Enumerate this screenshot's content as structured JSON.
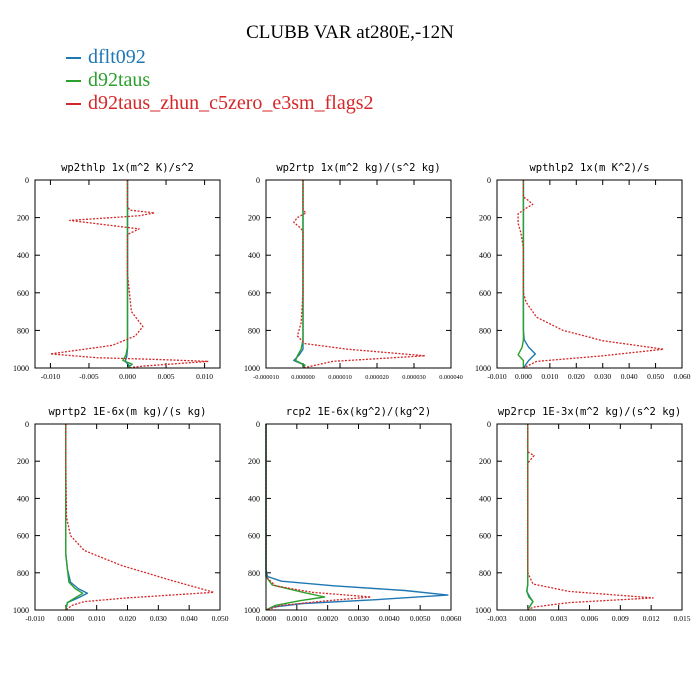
{
  "title": "CLUBB VAR at280E,-12N",
  "legend": [
    {
      "name": "dflt092",
      "color": "#1f77b4"
    },
    {
      "name": "d92taus",
      "color": "#2ca02c"
    },
    {
      "name": "d92taus_zhun_c5zero_e3sm_flags2",
      "color": "#d62728"
    }
  ],
  "chart_data": [
    {
      "type": "line",
      "title": "wp2thlp  1x(m^2 K)/s^2",
      "xlim": [
        -0.012,
        0.012
      ],
      "ylim": [
        1000,
        0
      ],
      "y_inverted": true,
      "xticks": [
        -0.01,
        -0.005,
        0.0,
        0.005,
        0.01
      ],
      "xticklabels": [
        "-0.010",
        "-0.005",
        "0.000",
        "0.005",
        "0.010"
      ],
      "yticks": [
        0,
        200,
        400,
        600,
        800,
        1000
      ],
      "series": [
        {
          "name": "dflt092",
          "color": "#1f77b4",
          "dash": "solid",
          "points": [
            [
              0,
              0
            ],
            [
              0,
              800
            ],
            [
              0,
              900
            ],
            [
              -0.0001,
              940
            ],
            [
              -0.0003,
              965
            ],
            [
              0.0002,
              985
            ],
            [
              0,
              1000
            ]
          ]
        },
        {
          "name": "d92taus",
          "color": "#2ca02c",
          "dash": "solid",
          "points": [
            [
              0,
              0
            ],
            [
              0,
              800
            ],
            [
              0,
              890
            ],
            [
              -0.0002,
              930
            ],
            [
              -0.0006,
              960
            ],
            [
              0.0006,
              980
            ],
            [
              0,
              1000
            ]
          ]
        },
        {
          "name": "d92taus_zhun_c5zero_e3sm_flags2",
          "color": "#d62728",
          "dash": "dotted",
          "points": [
            [
              0,
              0
            ],
            [
              0,
              140
            ],
            [
              0.0003,
              160
            ],
            [
              0.0035,
              175
            ],
            [
              0.0015,
              190
            ],
            [
              -0.002,
              200
            ],
            [
              -0.0075,
              215
            ],
            [
              -0.0025,
              240
            ],
            [
              0.0015,
              260
            ],
            [
              0,
              290
            ],
            [
              0,
              500
            ],
            [
              0.0005,
              700
            ],
            [
              0.002,
              780
            ],
            [
              0.001,
              830
            ],
            [
              -0.002,
              880
            ],
            [
              -0.01,
              925
            ],
            [
              -0.004,
              945
            ],
            [
              0.004,
              955
            ],
            [
              0.0105,
              965
            ],
            [
              0.002,
              990
            ],
            [
              0,
              1000
            ]
          ]
        }
      ]
    },
    {
      "type": "line",
      "title": "wp2rtp  1x(m^2 kg)/(s^2 kg)",
      "xlim": [
        -1e-05,
        4e-05
      ],
      "ylim": [
        1000,
        0
      ],
      "y_inverted": true,
      "xticks": [
        -1e-05,
        0.0,
        1e-05,
        2e-05,
        3e-05,
        4e-05
      ],
      "xticklabels": [
        "-0.000010",
        "0.000000",
        "0.000010",
        "0.000020",
        "0.000030",
        "0.000040"
      ],
      "yticks": [
        0,
        200,
        400,
        600,
        800,
        1000
      ],
      "series": [
        {
          "name": "dflt092",
          "color": "#1f77b4",
          "dash": "solid",
          "points": [
            [
              0,
              0
            ],
            [
              0,
              850
            ],
            [
              0,
              900
            ],
            [
              -1e-06,
              930
            ],
            [
              -2.5e-06,
              960
            ],
            [
              5e-07,
              985
            ],
            [
              0,
              1000
            ]
          ]
        },
        {
          "name": "d92taus",
          "color": "#2ca02c",
          "dash": "solid",
          "points": [
            [
              0,
              0
            ],
            [
              0,
              850
            ],
            [
              -5e-07,
              900
            ],
            [
              -1.5e-06,
              935
            ],
            [
              -2e-06,
              960
            ],
            [
              5e-07,
              985
            ],
            [
              0,
              1000
            ]
          ]
        },
        {
          "name": "d92taus_zhun_c5zero_e3sm_flags2",
          "color": "#d62728",
          "dash": "dotted",
          "points": [
            [
              0,
              0
            ],
            [
              0,
              160
            ],
            [
              8e-07,
              175
            ],
            [
              -1.5e-06,
              200
            ],
            [
              -2.5e-06,
              225
            ],
            [
              -1e-06,
              250
            ],
            [
              0,
              270
            ],
            [
              0,
              600
            ],
            [
              -5e-07,
              760
            ],
            [
              -1.5e-06,
              830
            ],
            [
              5e-07,
              870
            ],
            [
              1.2e-05,
              900
            ],
            [
              3.3e-05,
              935
            ],
            [
              8e-06,
              965
            ],
            [
              0,
              1000
            ]
          ]
        }
      ]
    },
    {
      "type": "line",
      "title": "wpthlp2  1x(m K^2)/s",
      "xlim": [
        -0.01,
        0.06
      ],
      "ylim": [
        1000,
        0
      ],
      "y_inverted": true,
      "xticks": [
        -0.01,
        0.0,
        0.01,
        0.02,
        0.03,
        0.04,
        0.05,
        0.06
      ],
      "xticklabels": [
        "-0.010",
        "0.000",
        "0.010",
        "0.020",
        "0.030",
        "0.040",
        "0.050",
        "0.060"
      ],
      "yticks": [
        0,
        200,
        400,
        600,
        800,
        1000
      ],
      "series": [
        {
          "name": "dflt092",
          "color": "#1f77b4",
          "dash": "solid",
          "points": [
            [
              0,
              0
            ],
            [
              0,
              800
            ],
            [
              0.0003,
              850
            ],
            [
              0.002,
              890
            ],
            [
              0.0045,
              925
            ],
            [
              0.002,
              960
            ],
            [
              0,
              1000
            ]
          ]
        },
        {
          "name": "d92taus",
          "color": "#2ca02c",
          "dash": "solid",
          "points": [
            [
              0,
              0
            ],
            [
              0,
              800
            ],
            [
              0,
              850
            ],
            [
              -0.0005,
              890
            ],
            [
              -0.002,
              930
            ],
            [
              0,
              960
            ],
            [
              0,
              1000
            ]
          ]
        },
        {
          "name": "d92taus_zhun_c5zero_e3sm_flags2",
          "color": "#d62728",
          "dash": "dotted",
          "points": [
            [
              0,
              0
            ],
            [
              0,
              90
            ],
            [
              0.002,
              110
            ],
            [
              0.0035,
              130
            ],
            [
              0.001,
              150
            ],
            [
              -0.002,
              180
            ],
            [
              -0.002,
              230
            ],
            [
              -0.001,
              280
            ],
            [
              0,
              360
            ],
            [
              0,
              600
            ],
            [
              0.001,
              650
            ],
            [
              0.005,
              730
            ],
            [
              0.015,
              800
            ],
            [
              0.03,
              855
            ],
            [
              0.053,
              900
            ],
            [
              0.03,
              935
            ],
            [
              0.005,
              965
            ],
            [
              0,
              1000
            ]
          ]
        }
      ]
    },
    {
      "type": "line",
      "title": "wprtp2  1E-6x(m kg)/(s kg)",
      "xlim": [
        -0.01,
        0.05
      ],
      "ylim": [
        1000,
        0
      ],
      "y_inverted": true,
      "xticks": [
        -0.01,
        0.0,
        0.01,
        0.02,
        0.03,
        0.04,
        0.05
      ],
      "xticklabels": [
        "-0.010",
        "0.000",
        "0.010",
        "0.020",
        "0.030",
        "0.040",
        "0.050"
      ],
      "yticks": [
        0,
        200,
        400,
        600,
        800,
        1000
      ],
      "series": [
        {
          "name": "dflt092",
          "color": "#1f77b4",
          "dash": "solid",
          "points": [
            [
              0,
              0
            ],
            [
              0,
              700
            ],
            [
              0.0005,
              780
            ],
            [
              0.0015,
              850
            ],
            [
              0.004,
              885
            ],
            [
              0.007,
              910
            ],
            [
              0.004,
              935
            ],
            [
              0.0005,
              960
            ],
            [
              0,
              1000
            ]
          ]
        },
        {
          "name": "d92taus",
          "color": "#2ca02c",
          "dash": "solid",
          "points": [
            [
              0,
              0
            ],
            [
              0,
              700
            ],
            [
              0.0005,
              780
            ],
            [
              0.001,
              850
            ],
            [
              0.003,
              885
            ],
            [
              0.0055,
              910
            ],
            [
              0.003,
              935
            ],
            [
              0.0005,
              960
            ],
            [
              0,
              1000
            ]
          ]
        },
        {
          "name": "d92taus_zhun_c5zero_e3sm_flags2",
          "color": "#d62728",
          "dash": "dotted",
          "points": [
            [
              0,
              0
            ],
            [
              0,
              200
            ],
            [
              0.0002,
              500
            ],
            [
              0.0015,
              600
            ],
            [
              0.006,
              680
            ],
            [
              0.018,
              760
            ],
            [
              0.034,
              840
            ],
            [
              0.048,
              905
            ],
            [
              0.02,
              935
            ],
            [
              0.006,
              955
            ],
            [
              0.002,
              975
            ],
            [
              0,
              1000
            ]
          ]
        }
      ]
    },
    {
      "type": "line",
      "title": "rcp2  1E-6x(kg^2)/(kg^2)",
      "xlim": [
        0.0,
        0.006
      ],
      "ylim": [
        1000,
        0
      ],
      "y_inverted": true,
      "xticks": [
        0.0,
        0.001,
        0.002,
        0.003,
        0.004,
        0.005,
        0.006
      ],
      "xticklabels": [
        "0.0000",
        "0.0010",
        "0.0020",
        "0.0030",
        "0.0040",
        "0.0050",
        "0.0060"
      ],
      "yticks": [
        0,
        200,
        400,
        600,
        800,
        1000
      ],
      "series": [
        {
          "name": "dflt092",
          "color": "#1f77b4",
          "dash": "solid",
          "points": [
            [
              0,
              0
            ],
            [
              0,
              780
            ],
            [
              5e-05,
              820
            ],
            [
              0.0005,
              845
            ],
            [
              0.0022,
              870
            ],
            [
              0.0045,
              895
            ],
            [
              0.0059,
              920
            ],
            [
              0.0035,
              945
            ],
            [
              0.0012,
              965
            ],
            [
              0.0002,
              985
            ],
            [
              0,
              1000
            ]
          ]
        },
        {
          "name": "d92taus",
          "color": "#2ca02c",
          "dash": "solid",
          "points": [
            [
              0,
              0
            ],
            [
              0,
              820
            ],
            [
              0.0002,
              865
            ],
            [
              0.0012,
              905
            ],
            [
              0.0019,
              930
            ],
            [
              0.0011,
              950
            ],
            [
              0.0003,
              975
            ],
            [
              0,
              1000
            ]
          ]
        },
        {
          "name": "d92taus_zhun_c5zero_e3sm_flags2",
          "color": "#d62728",
          "dash": "dotted",
          "points": [
            [
              0,
              0
            ],
            [
              0,
              820
            ],
            [
              0.0003,
              870
            ],
            [
              0.0015,
              905
            ],
            [
              0.0034,
              930
            ],
            [
              0.002,
              950
            ],
            [
              0.0005,
              975
            ],
            [
              0,
              1000
            ]
          ]
        }
      ]
    },
    {
      "type": "line",
      "title": "wp2rcp  1E-3x(m^2 kg)/(s^2 kg)",
      "xlim": [
        -0.003,
        0.015
      ],
      "ylim": [
        1000,
        0
      ],
      "y_inverted": true,
      "xticks": [
        -0.003,
        0.0,
        0.003,
        0.006,
        0.009,
        0.012,
        0.015
      ],
      "xticklabels": [
        "-0.003",
        "0.000",
        "0.003",
        "0.006",
        "0.009",
        "0.012",
        "0.015"
      ],
      "yticks": [
        0,
        200,
        400,
        600,
        800,
        1000
      ],
      "series": [
        {
          "name": "dflt092",
          "color": "#1f77b4",
          "dash": "solid",
          "points": [
            [
              0,
              0
            ],
            [
              0,
              860
            ],
            [
              -0.0001,
              900
            ],
            [
              0.0002,
              930
            ],
            [
              0.0005,
              955
            ],
            [
              0.0002,
              980
            ],
            [
              0,
              1000
            ]
          ]
        },
        {
          "name": "d92taus",
          "color": "#2ca02c",
          "dash": "solid",
          "points": [
            [
              0,
              0
            ],
            [
              0,
              860
            ],
            [
              -0.0001,
              900
            ],
            [
              0.0001,
              930
            ],
            [
              0.0005,
              955
            ],
            [
              0.0002,
              980
            ],
            [
              0,
              1000
            ]
          ]
        },
        {
          "name": "d92taus_zhun_c5zero_e3sm_flags2",
          "color": "#d62728",
          "dash": "dotted",
          "points": [
            [
              0,
              0
            ],
            [
              0,
              150
            ],
            [
              0.0006,
              170
            ],
            [
              0.0003,
              190
            ],
            [
              0,
              210
            ],
            [
              0,
              800
            ],
            [
              0.0005,
              860
            ],
            [
              0.004,
              900
            ],
            [
              0.0122,
              935
            ],
            [
              0.004,
              960
            ],
            [
              0.0005,
              985
            ],
            [
              0,
              1000
            ]
          ]
        }
      ]
    }
  ]
}
